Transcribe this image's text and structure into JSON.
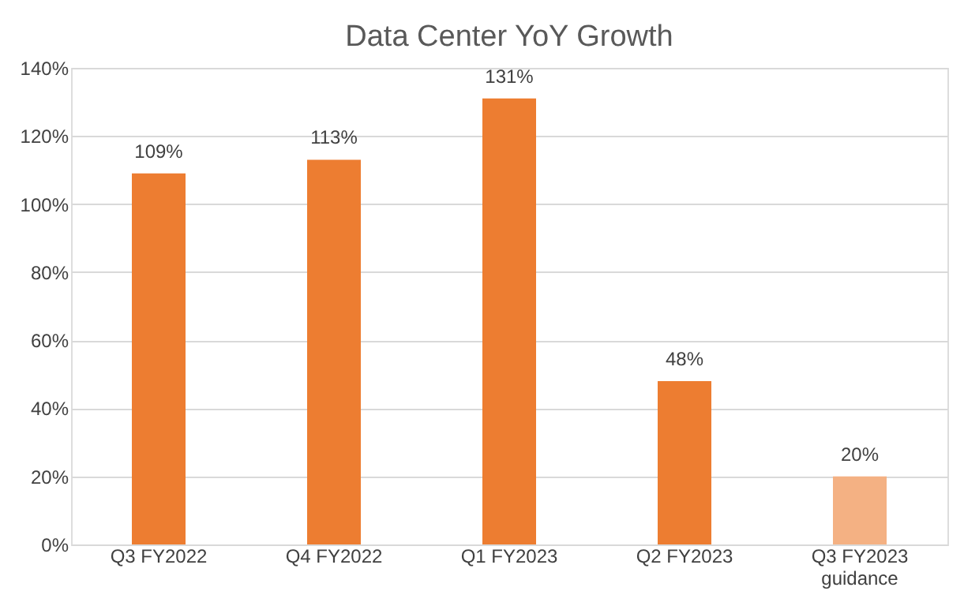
{
  "chart_data": {
    "type": "bar",
    "title": "Data Center YoY Growth",
    "categories": [
      "Q3 FY2022",
      "Q4 FY2022",
      "Q1 FY2023",
      "Q2 FY2023",
      "Q3 FY2023\nguidance"
    ],
    "values": [
      109,
      113,
      131,
      48,
      20
    ],
    "colors": [
      "#ed7d31",
      "#ed7d31",
      "#ed7d31",
      "#ed7d31",
      "#f4b183"
    ],
    "value_labels": [
      "109%",
      "113%",
      "131%",
      "48%",
      "20%"
    ],
    "ylim": [
      0,
      140
    ],
    "yticks": [
      {
        "value": 0,
        "label": "0%"
      },
      {
        "value": 20,
        "label": "20%"
      },
      {
        "value": 40,
        "label": "40%"
      },
      {
        "value": 60,
        "label": "60%"
      },
      {
        "value": 80,
        "label": "80%"
      },
      {
        "value": 100,
        "label": "100%"
      },
      {
        "value": 120,
        "label": "120%"
      },
      {
        "value": 140,
        "label": "140%"
      }
    ],
    "grid": "y"
  }
}
